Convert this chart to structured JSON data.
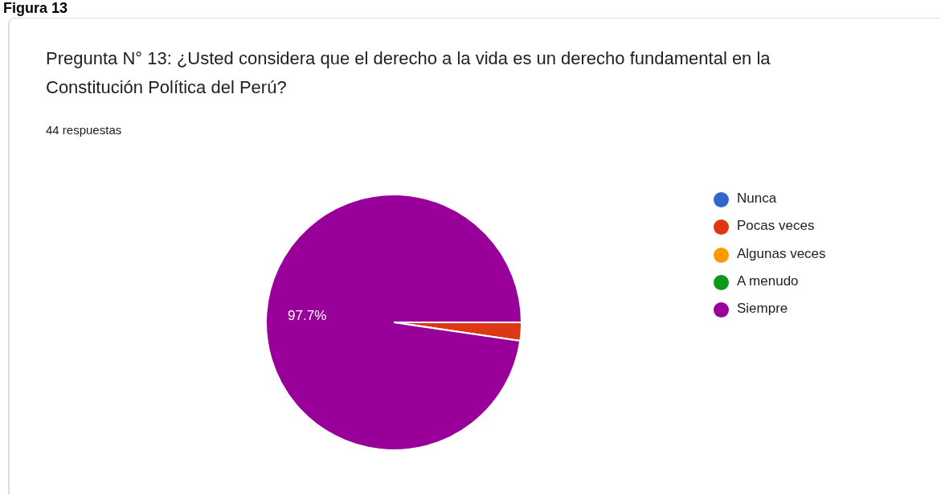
{
  "chart_data": {
    "type": "pie",
    "title": "Pregunta N° 13: ¿Usted considera que el derecho a la vida es un derecho fundamental en la Constitución Política del Perú?",
    "subtitle": "44 respuestas",
    "annotations": [
      "Figura 13"
    ],
    "categories": [
      "Nunca",
      "Pocas veces",
      "Algunas veces",
      "A menudo",
      "Siempre"
    ],
    "values": [
      0,
      2.3,
      0,
      0,
      97.7
    ],
    "colors": [
      "#3366cc",
      "#dc3912",
      "#ff9900",
      "#109618",
      "#990099"
    ],
    "value_labels": [
      null,
      null,
      null,
      null,
      "97.7%"
    ],
    "legend": "right"
  }
}
